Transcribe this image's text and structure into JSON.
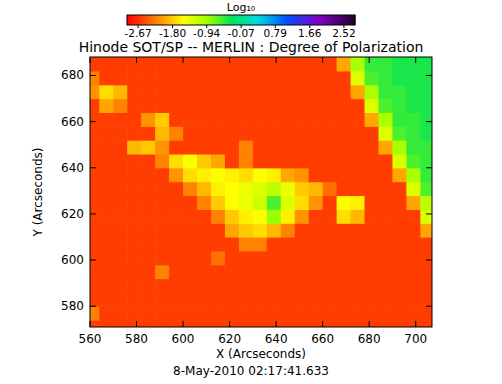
{
  "chart_data": {
    "type": "heatmap",
    "title": "Hinode SOT/SP -- MERLIN : Degree of Polarization",
    "xlabel": "X (Arcseconds)",
    "ylabel": "Y (Arcseconds)",
    "annotations": [
      "8-May-2010 02:17:41.633"
    ],
    "xlim": [
      560,
      707
    ],
    "ylim": [
      571,
      688
    ],
    "xticks": [
      560,
      580,
      600,
      620,
      640,
      660,
      680,
      700
    ],
    "yticks": [
      580,
      600,
      620,
      640,
      660,
      680
    ],
    "x": [
      561,
      567,
      573,
      579,
      585,
      591,
      597,
      603,
      609,
      615,
      621,
      627,
      633,
      639,
      645,
      651,
      657,
      663,
      669,
      675,
      681,
      687,
      693,
      699,
      705
    ],
    "y": [
      571,
      577,
      583,
      589,
      595,
      601,
      607,
      613,
      619,
      625,
      631,
      637,
      643,
      649,
      655,
      661,
      667,
      673,
      679,
      685
    ],
    "z": [
      [
        -2.6,
        -2.6,
        -2.6,
        -2.6,
        -2.6,
        -2.6,
        -2.6,
        -2.6,
        -2.6,
        -2.6,
        -2.6,
        -2.6,
        -2.6,
        -2.6,
        -2.6,
        -2.6,
        -2.6,
        -2.6,
        -2.6,
        -2.6,
        -2.6,
        -2.6,
        -2.6,
        -2.6,
        -2.6
      ],
      [
        -2.2,
        -2.6,
        -2.6,
        -2.6,
        -2.6,
        -2.6,
        -2.6,
        -2.6,
        -2.6,
        -2.6,
        -2.6,
        -2.6,
        -2.6,
        -2.6,
        -2.6,
        -2.6,
        -2.6,
        -2.6,
        -2.6,
        -2.6,
        -2.6,
        -2.6,
        -2.6,
        -2.6,
        -2.6
      ],
      [
        -2.6,
        -2.6,
        -2.6,
        -2.6,
        -2.6,
        -2.6,
        -2.6,
        -2.6,
        -2.6,
        -2.6,
        -2.6,
        -2.6,
        -2.6,
        -2.6,
        -2.6,
        -2.6,
        -2.6,
        -2.6,
        -2.6,
        -2.6,
        -2.6,
        -2.6,
        -2.6,
        -2.6,
        -2.6
      ],
      [
        -2.6,
        -2.6,
        -2.6,
        -2.6,
        -2.6,
        -2.6,
        -2.6,
        -2.6,
        -2.6,
        -2.6,
        -2.6,
        -2.6,
        -2.6,
        -2.6,
        -2.6,
        -2.6,
        -2.6,
        -2.6,
        -2.6,
        -2.6,
        -2.6,
        -2.6,
        -2.6,
        -2.6,
        -2.6
      ],
      [
        -2.6,
        -2.6,
        -2.6,
        -2.6,
        -2.6,
        -2.2,
        -2.6,
        -2.6,
        -2.6,
        -2.6,
        -2.6,
        -2.6,
        -2.6,
        -2.6,
        -2.6,
        -2.6,
        -2.6,
        -2.6,
        -2.6,
        -2.6,
        -2.6,
        -2.6,
        -2.6,
        -2.6,
        -2.6
      ],
      [
        -2.6,
        -2.6,
        -2.6,
        -2.6,
        -2.6,
        -2.6,
        -2.6,
        -2.6,
        -2.6,
        -2.3,
        -2.6,
        -2.6,
        -2.6,
        -2.6,
        -2.6,
        -2.6,
        -2.6,
        -2.6,
        -2.6,
        -2.6,
        -2.6,
        -2.6,
        -2.6,
        -2.6,
        -2.6
      ],
      [
        -2.6,
        -2.6,
        -2.6,
        -2.6,
        -2.6,
        -2.6,
        -2.6,
        -2.6,
        -2.6,
        -2.6,
        -2.6,
        -2.2,
        -2.2,
        -2.6,
        -2.6,
        -2.6,
        -2.6,
        -2.6,
        -2.6,
        -2.6,
        -2.6,
        -2.6,
        -2.6,
        -2.6,
        -2.6
      ],
      [
        -2.6,
        -2.6,
        -2.6,
        -2.6,
        -2.6,
        -2.6,
        -2.6,
        -2.6,
        -2.6,
        -2.6,
        -2.0,
        -1.8,
        -1.7,
        -1.9,
        -2.2,
        -2.6,
        -2.6,
        -2.6,
        -2.6,
        -2.6,
        -2.6,
        -2.6,
        -2.6,
        -2.6,
        -2.0
      ],
      [
        -2.6,
        -2.6,
        -2.6,
        -2.6,
        -2.6,
        -2.6,
        -2.6,
        -2.6,
        -2.6,
        -2.2,
        -1.8,
        -1.6,
        -1.5,
        -0.9,
        -1.6,
        -2.1,
        -2.6,
        -2.6,
        -1.7,
        -1.9,
        -2.6,
        -2.6,
        -2.6,
        -2.6,
        -1.3
      ],
      [
        -2.6,
        -2.6,
        -2.6,
        -2.6,
        -2.6,
        -2.6,
        -2.6,
        -2.6,
        -2.2,
        -1.8,
        -1.5,
        -1.4,
        -1.2,
        -0.6,
        -1.3,
        -1.7,
        -2.1,
        -2.6,
        -1.5,
        -1.6,
        -2.6,
        -2.6,
        -2.6,
        -2.0,
        -1.1
      ],
      [
        -2.6,
        -2.6,
        -2.6,
        -2.6,
        -2.6,
        -2.6,
        -2.6,
        -2.2,
        -1.9,
        -1.6,
        -1.5,
        -1.4,
        -1.3,
        -1.1,
        -1.4,
        -1.8,
        -1.9,
        -2.3,
        -2.6,
        -2.6,
        -2.6,
        -2.6,
        -2.6,
        -1.3,
        -0.6
      ],
      [
        -2.6,
        -2.6,
        -2.6,
        -2.6,
        -2.6,
        -2.6,
        -2.1,
        -1.7,
        -1.6,
        -1.5,
        -1.6,
        -1.7,
        -1.5,
        -1.6,
        -2.0,
        -2.1,
        -2.6,
        -2.6,
        -2.6,
        -2.6,
        -2.6,
        -2.6,
        -2.0,
        -1.0,
        -0.5
      ],
      [
        -2.6,
        -2.6,
        -2.6,
        -2.6,
        -2.6,
        -2.2,
        -1.7,
        -1.5,
        -1.8,
        -2.0,
        -2.6,
        -2.2,
        -2.6,
        -2.6,
        -2.6,
        -2.6,
        -2.6,
        -2.6,
        -2.6,
        -2.6,
        -2.6,
        -2.6,
        -1.3,
        -0.6,
        -0.5
      ],
      [
        -2.6,
        -2.6,
        -2.6,
        -1.9,
        -1.8,
        -2.1,
        -2.6,
        -2.6,
        -2.6,
        -2.6,
        -2.6,
        -2.2,
        -2.6,
        -2.6,
        -2.6,
        -2.6,
        -2.6,
        -2.6,
        -2.6,
        -2.6,
        -2.6,
        -2.0,
        -1.0,
        -0.5,
        -0.5
      ],
      [
        -2.6,
        -2.6,
        -2.6,
        -2.6,
        -2.6,
        -1.9,
        -2.2,
        -2.6,
        -2.6,
        -2.6,
        -2.6,
        -2.6,
        -2.6,
        -2.6,
        -2.6,
        -2.6,
        -2.6,
        -2.6,
        -2.6,
        -2.6,
        -2.6,
        -1.3,
        -0.6,
        -0.5,
        -0.4
      ],
      [
        -2.6,
        -2.6,
        -2.6,
        -2.6,
        -2.1,
        -1.8,
        -2.6,
        -2.6,
        -2.6,
        -2.6,
        -2.6,
        -2.6,
        -2.6,
        -2.6,
        -2.6,
        -2.6,
        -2.6,
        -2.6,
        -2.6,
        -2.6,
        -2.0,
        -1.0,
        -0.5,
        -0.5,
        -0.4
      ],
      [
        -2.6,
        -2.0,
        -2.2,
        -2.6,
        -2.6,
        -2.6,
        -2.6,
        -2.6,
        -2.6,
        -2.6,
        -2.6,
        -2.6,
        -2.6,
        -2.6,
        -2.6,
        -2.6,
        -2.6,
        -2.6,
        -2.6,
        -2.6,
        -1.3,
        -0.6,
        -0.5,
        -0.4,
        -0.4
      ],
      [
        -2.1,
        -1.7,
        -1.9,
        -2.6,
        -2.6,
        -2.6,
        -2.6,
        -2.6,
        -2.6,
        -2.6,
        -2.6,
        -2.6,
        -2.6,
        -2.6,
        -2.6,
        -2.6,
        -2.6,
        -2.6,
        -2.6,
        -2.0,
        -1.0,
        -0.5,
        -0.5,
        -0.4,
        -0.4
      ],
      [
        -2.2,
        -2.6,
        -2.6,
        -2.6,
        -2.6,
        -2.6,
        -2.6,
        -2.6,
        -2.6,
        -2.6,
        -2.6,
        -2.6,
        -2.6,
        -2.6,
        -2.6,
        -2.6,
        -2.6,
        -2.6,
        -2.6,
        -1.3,
        -0.6,
        -0.5,
        -0.4,
        -0.4,
        -0.4
      ],
      [
        -2.6,
        -2.6,
        -2.6,
        -2.6,
        -2.6,
        -2.6,
        -2.6,
        -2.6,
        -2.6,
        -2.6,
        -2.6,
        -2.6,
        -2.6,
        -2.6,
        -2.6,
        -2.6,
        -2.6,
        -2.6,
        -2.0,
        -1.0,
        -0.5,
        -0.5,
        -0.4,
        -0.4,
        -0.4
      ]
    ],
    "colorbar": {
      "label": "Log₁₀",
      "range": [
        -2.95,
        2.8
      ],
      "ticks": [
        -2.67,
        {
          "value": -1.8,
          "label": "-1.80"
        },
        -0.94,
        -0.07,
        0.79,
        1.66,
        2.52
      ]
    }
  }
}
